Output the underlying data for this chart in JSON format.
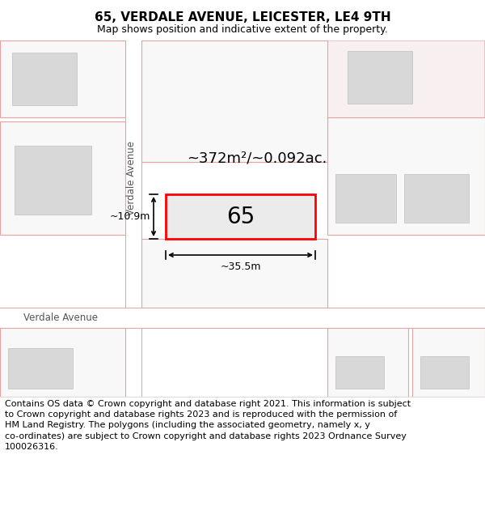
{
  "title": "65, VERDALE AVENUE, LEICESTER, LE4 9TH",
  "subtitle": "Map shows position and indicative extent of the property.",
  "footer": "Contains OS data © Crown copyright and database right 2021. This information is subject to Crown copyright and database rights 2023 and is reproduced with the permission of HM Land Registry. The polygons (including the associated geometry, namely x, y co-ordinates) are subject to Crown copyright and database rights 2023 Ordnance Survey 100026316.",
  "area_label": "~372m²/~0.092ac.",
  "property_number": "65",
  "dim_width": "~35.5m",
  "dim_height": "~10.9m",
  "street_label_v": "Verdale Avenue",
  "street_label_h": "Verdale Avenue",
  "map_bg": "#ffffff",
  "parcel_fill": "#e8e8e8",
  "parcel_edge": "#e8a0a0",
  "building_fill": "#d4d4d4",
  "property_edge": "#ff0000",
  "dim_color": "#000000",
  "label_color": "#666666",
  "footer_bg": "#ffffff",
  "title_fs": 11,
  "subtitle_fs": 9,
  "area_fs": 13,
  "num_fs": 20,
  "dim_fs": 9,
  "street_fs": 8.5,
  "footer_fs": 8.0
}
